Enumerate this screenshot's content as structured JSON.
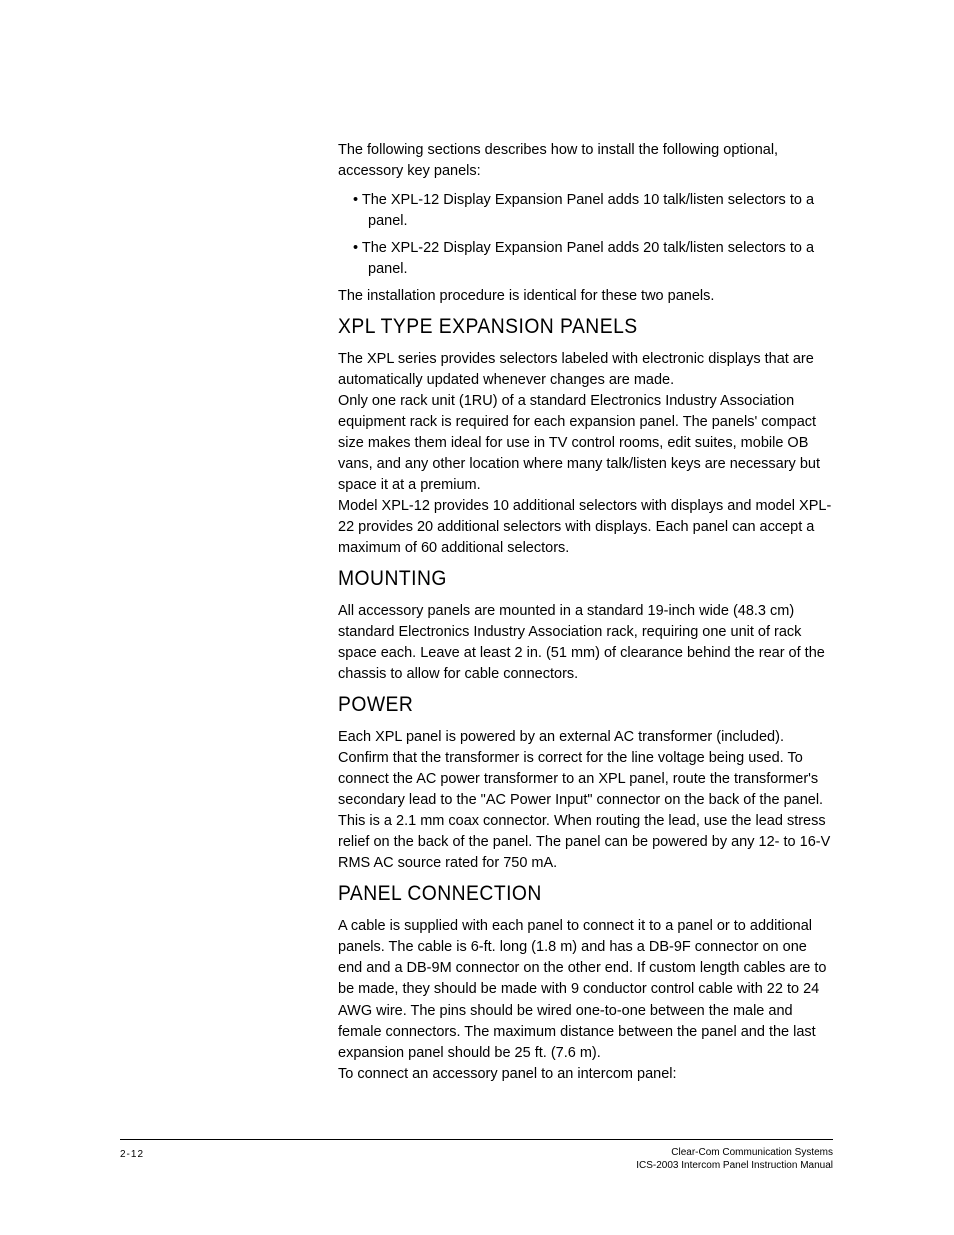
{
  "intro": {
    "p1": "The following sections describes how to install the following optional, accessory key panels:",
    "bullets": [
      "The XPL-12 Display Expansion Panel adds 10 talk/listen selectors to a panel.",
      "The XPL-22 Display Expansion Panel adds 20 talk/listen selectors to a panel."
    ],
    "p2": "The installation procedure is identical for these two panels."
  },
  "sections": {
    "xpl": {
      "heading": "XPL TYPE EXPANSION PANELS",
      "p1": "The XPL series provides selectors labeled with electronic displays that are automatically updated whenever changes are made.",
      "p2": "Only one rack unit (1RU) of a standard Electronics Industry Association equipment rack is required for each expansion panel.  The panels' compact size makes them ideal for use in TV control rooms, edit suites, mobile OB vans, and any other location where many talk/listen keys are necessary but space it at a premium.",
      "p3": "Model XPL-12 provides 10 additional selectors with displays and model XPL-22 provides 20 additional selectors with displays. Each panel can accept a maximum of 60 additional selectors."
    },
    "mounting": {
      "heading": "MOUNTING",
      "p1": "All accessory panels are mounted in a standard 19-inch wide (48.3 cm) standard Electronics Industry Association rack, requiring one unit of rack space each. Leave at least 2 in. (51 mm) of clearance behind the rear of the chassis to allow for cable connectors."
    },
    "power": {
      "heading": "POWER",
      "p1": "Each XPL panel is powered by an external AC transformer (included). Confirm that the transformer is correct for the line voltage being used. To connect the AC power transformer to an XPL panel, route the transformer's secondary lead to the \"AC Power Input\" connector on the back of the panel. This is a 2.1 mm coax connector. When routing the lead, use the lead stress relief on the back of the panel. The panel can be powered by any 12- to 16-V RMS AC source rated for 750 mA."
    },
    "panel_connection": {
      "heading": "PANEL CONNECTION",
      "p1": "A cable is supplied with each panel to connect it to a panel or to additional panels. The cable is 6-ft. long (1.8 m) and has a DB-9F connector on one end and a DB-9M connector on the other end. If custom length cables are to be made, they should be made with 9 conductor control cable with 22 to 24 AWG wire. The pins should be wired one-to-one between the male and female connectors. The maximum distance between the panel and the last expansion panel should be 25 ft. (7.6 m).",
      "p2": "To connect an accessory panel to an intercom panel:"
    }
  },
  "footer": {
    "page_number": "2-12",
    "company": "Clear-Com Communication Systems",
    "doc_title": "ICS-2003 Intercom Panel Instruction Manual"
  }
}
